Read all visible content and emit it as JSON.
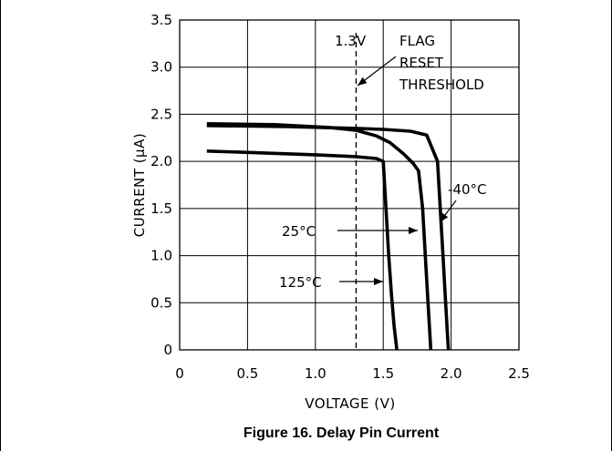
{
  "caption": "Figure 16. Delay Pin Current",
  "chart_data": {
    "type": "line",
    "title": "",
    "xlabel": "VOLTAGE (V)",
    "ylabel": "CURRENT (µA)",
    "xlim": [
      0,
      2.5
    ],
    "ylim": [
      0,
      3.5
    ],
    "xticks": [
      "0",
      "0.5",
      "1.0",
      "1.5",
      "2.0",
      "2.5"
    ],
    "yticks": [
      "0",
      "0.5",
      "1.0",
      "1.5",
      "2.0",
      "2.5",
      "3.0",
      "3.5"
    ],
    "grid": true,
    "series": [
      {
        "name": "125°C",
        "x": [
          0.2,
          0.6,
          1.0,
          1.3,
          1.45,
          1.5,
          1.52,
          1.54,
          1.56,
          1.58,
          1.6
        ],
        "y": [
          2.11,
          2.09,
          2.07,
          2.05,
          2.03,
          2.0,
          1.5,
          1.0,
          0.6,
          0.25,
          0.0
        ]
      },
      {
        "name": "25°C",
        "x": [
          0.2,
          0.7,
          1.1,
          1.3,
          1.45,
          1.55,
          1.65,
          1.72,
          1.76,
          1.79,
          1.81,
          1.83,
          1.85
        ],
        "y": [
          2.4,
          2.39,
          2.36,
          2.33,
          2.27,
          2.2,
          2.08,
          1.98,
          1.9,
          1.5,
          1.0,
          0.5,
          0.0
        ]
      },
      {
        "name": "-40°C",
        "x": [
          0.2,
          0.8,
          1.3,
          1.5,
          1.7,
          1.82,
          1.9,
          1.92,
          1.94,
          1.96,
          1.98
        ],
        "y": [
          2.38,
          2.37,
          2.35,
          2.34,
          2.32,
          2.28,
          2.0,
          1.5,
          1.0,
          0.5,
          0.0
        ]
      }
    ],
    "annotations": [
      {
        "text_lines": [
          "1.3V"
        ],
        "x_ref": 1.3
      },
      {
        "text_lines": [
          "FLAG",
          "RESET",
          "THRESHOLD"
        ]
      },
      {
        "text_lines": [
          "-40°C"
        ],
        "series": "-40°C"
      },
      {
        "text_lines": [
          "25°C"
        ],
        "series": "25°C"
      },
      {
        "text_lines": [
          "125°C"
        ],
        "series": "125°C"
      }
    ],
    "reference_lines": [
      {
        "orientation": "vertical",
        "x": 1.3,
        "style": "dashed"
      }
    ]
  }
}
